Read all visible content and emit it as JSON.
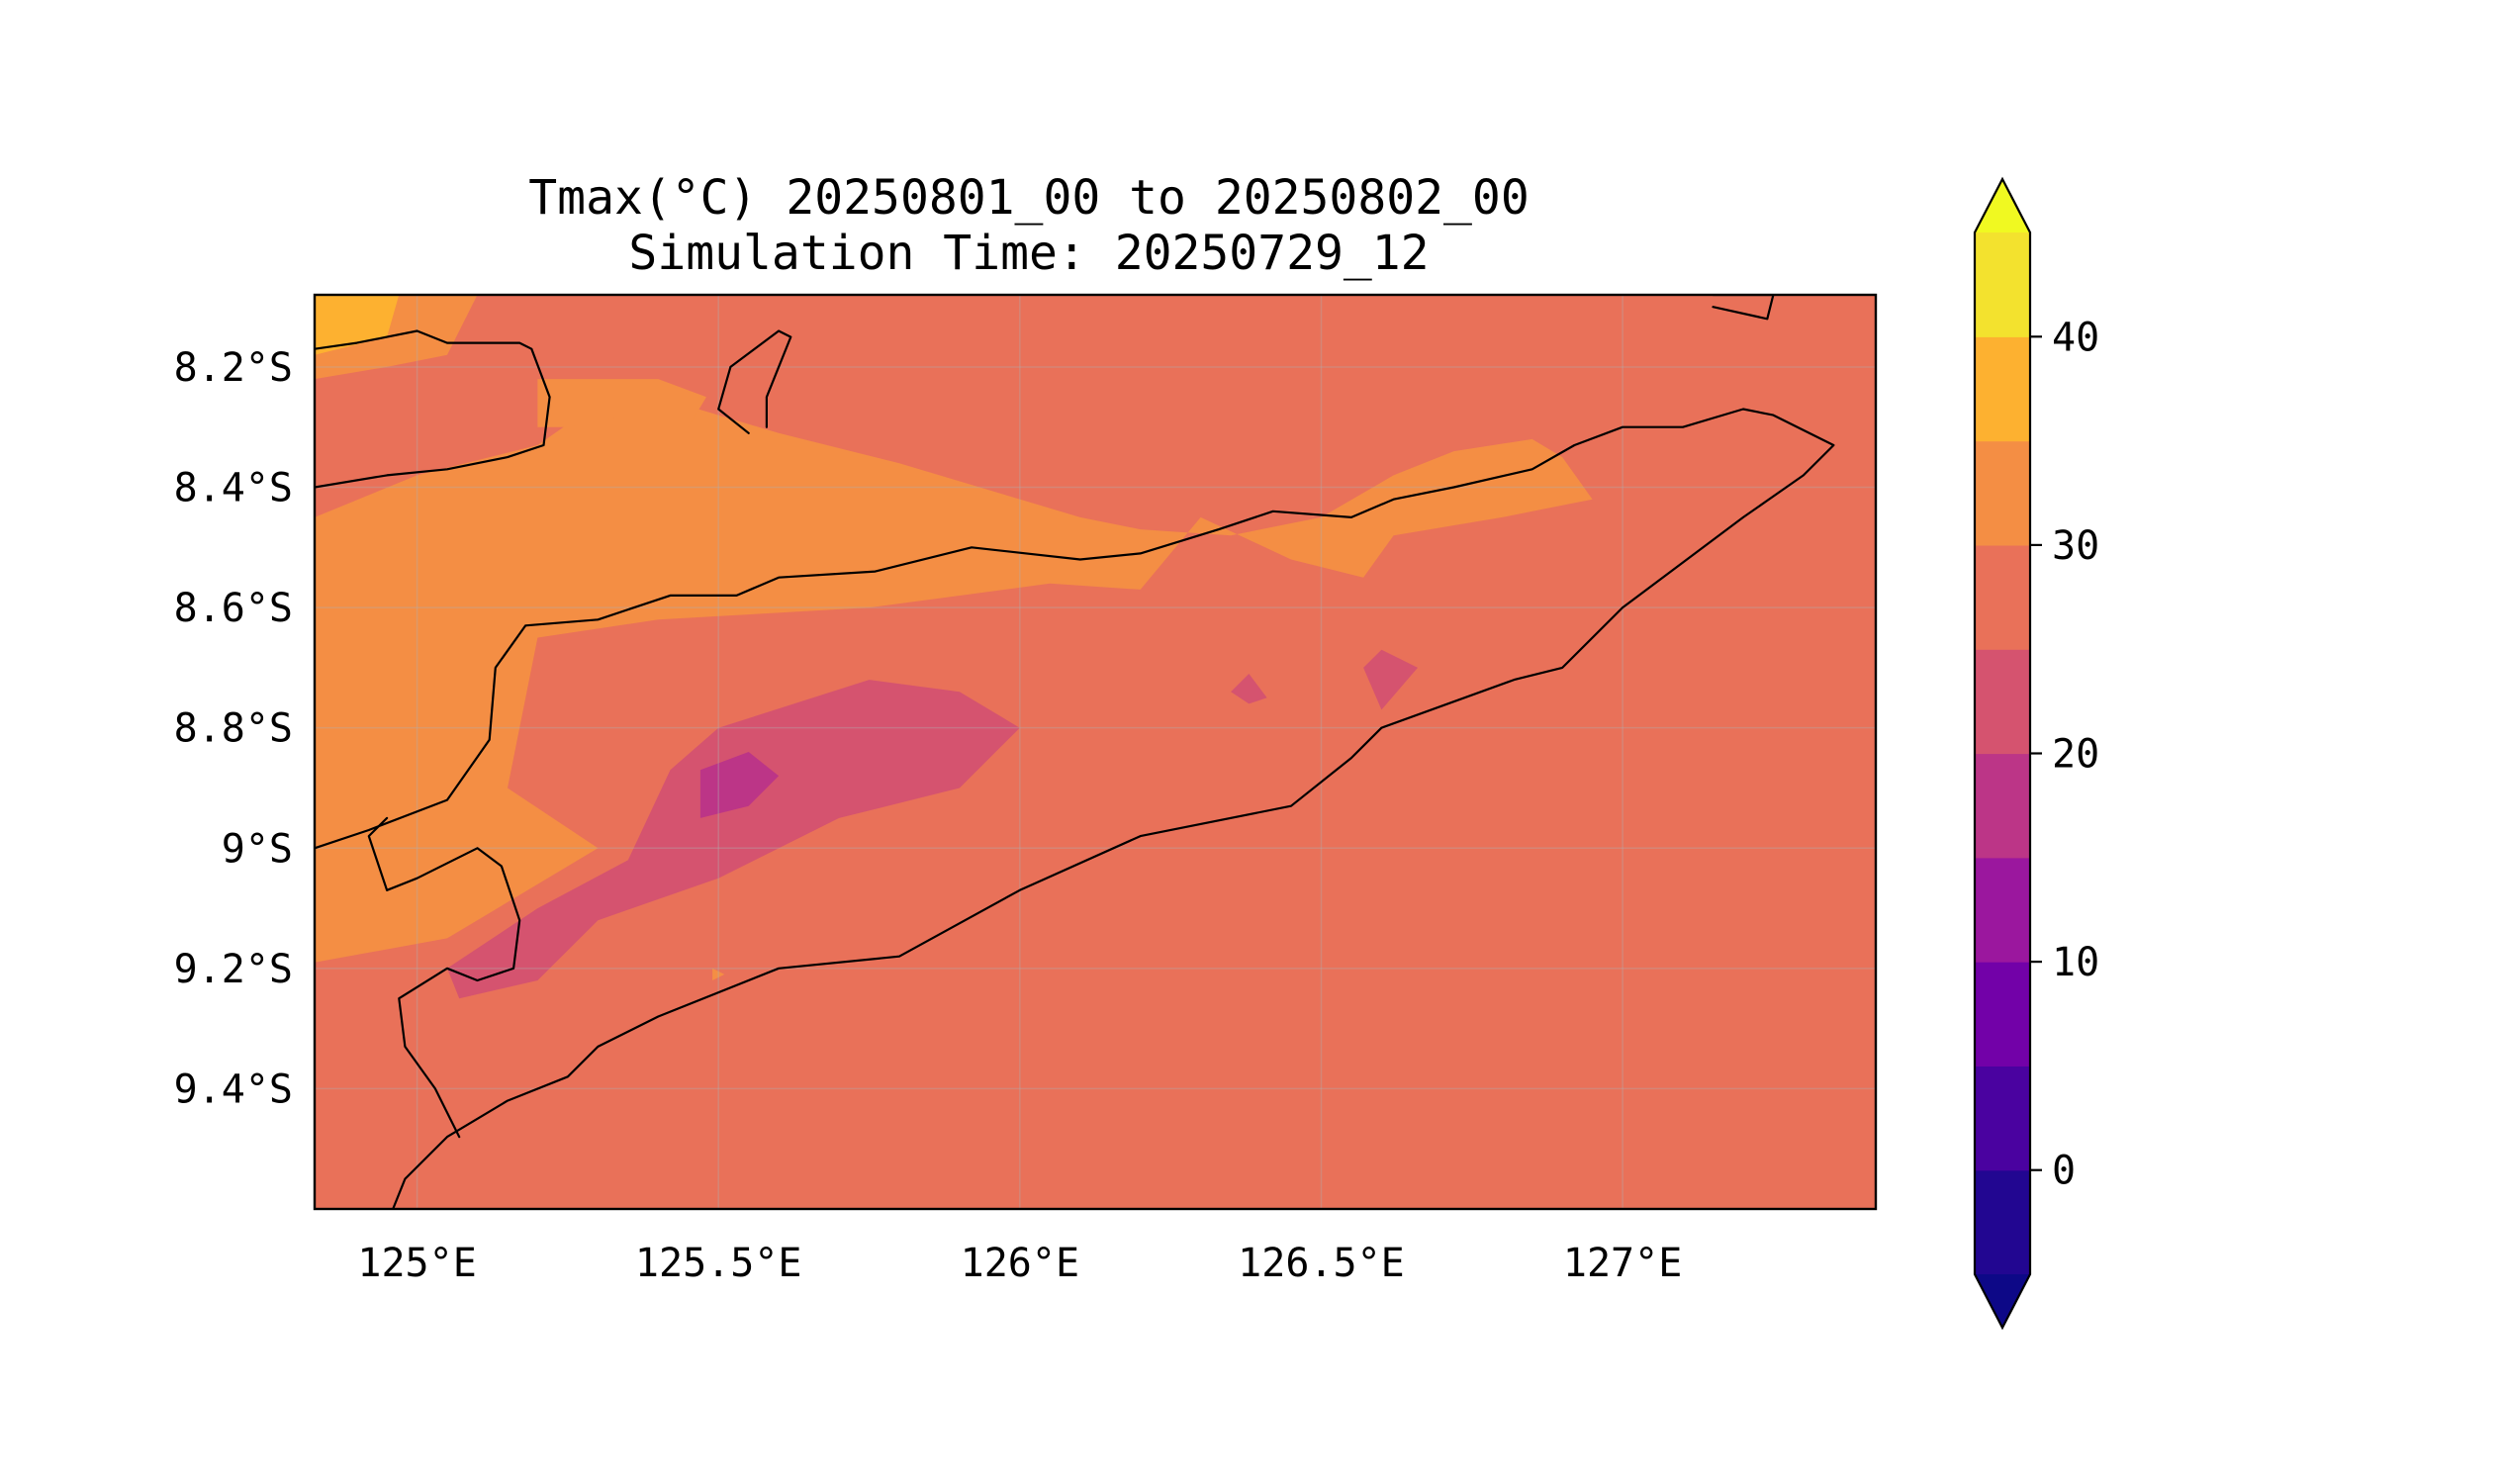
{
  "chart_data": {
    "type": "map-contour",
    "title": "Tmax(°C) 20250801_00 to 20250802_00",
    "subtitle": "Simulation Time: 20250729_12",
    "xlim": [
      124.83,
      127.42
    ],
    "ylim": [
      -9.6,
      -8.08
    ],
    "x_ticks": [
      125.0,
      125.5,
      126.0,
      126.5,
      127.0
    ],
    "y_ticks": [
      -8.2,
      -8.4,
      -8.6,
      -8.8,
      -9.0,
      -9.2,
      -9.4
    ],
    "x_tick_labels": [
      "125°E",
      "125.5°E",
      "126°E",
      "126.5°E",
      "127°E"
    ],
    "y_tick_labels": [
      "8.2°S",
      "8.4°S",
      "8.6°S",
      "8.8°S",
      "9°S",
      "9.2°S",
      "9.4°S"
    ],
    "grid": true,
    "colorbar": {
      "levels": [
        -5,
        0,
        5,
        10,
        15,
        20,
        25,
        30,
        35,
        40,
        45
      ],
      "colors": [
        "#220691",
        "#4a02a0",
        "#7201a8",
        "#9b179e",
        "#bc3587",
        "#d5536f",
        "#e97159",
        "#f48e44",
        "#fdb130",
        "#f3e22e"
      ],
      "under_color": "#0d0887",
      "over_color": "#f0f921",
      "extend": "both",
      "ticks": [
        0,
        10,
        20,
        30,
        40
      ],
      "tick_labels": [
        "0",
        "10",
        "20",
        "30",
        "40"
      ]
    },
    "background_value_band": "25-30",
    "regions": [
      {
        "band": "30-35",
        "color": "#f48e44",
        "lonlat": [
          [
            124.83,
            -8.45
          ],
          [
            125.0,
            -8.38
          ],
          [
            125.2,
            -8.33
          ],
          [
            125.3,
            -8.26
          ],
          [
            125.4,
            -8.25
          ],
          [
            125.5,
            -8.28
          ],
          [
            125.6,
            -8.31
          ],
          [
            125.8,
            -8.36
          ],
          [
            126.1,
            -8.45
          ],
          [
            126.2,
            -8.47
          ],
          [
            126.35,
            -8.48
          ],
          [
            126.5,
            -8.45
          ],
          [
            126.62,
            -8.38
          ],
          [
            126.72,
            -8.34
          ],
          [
            126.85,
            -8.32
          ],
          [
            126.9,
            -8.35
          ],
          [
            126.95,
            -8.42
          ],
          [
            126.8,
            -8.45
          ],
          [
            126.62,
            -8.48
          ],
          [
            126.57,
            -8.55
          ],
          [
            126.45,
            -8.52
          ],
          [
            126.3,
            -8.45
          ],
          [
            126.2,
            -8.57
          ],
          [
            126.05,
            -8.56
          ],
          [
            125.75,
            -8.6
          ],
          [
            125.4,
            -8.62
          ],
          [
            125.2,
            -8.65
          ],
          [
            125.15,
            -8.9
          ],
          [
            125.3,
            -9.0
          ],
          [
            125.05,
            -9.15
          ],
          [
            124.83,
            -9.19
          ]
        ]
      },
      {
        "band": "30-35",
        "color": "#f48e44",
        "lonlat": [
          [
            124.83,
            -8.15
          ],
          [
            124.95,
            -8.08
          ],
          [
            125.1,
            -8.08
          ],
          [
            125.05,
            -8.18
          ],
          [
            124.95,
            -8.2
          ],
          [
            124.83,
            -8.22
          ]
        ]
      },
      {
        "band": "30-35",
        "color": "#f48e44",
        "lonlat": [
          [
            125.2,
            -8.22
          ],
          [
            125.4,
            -8.22
          ],
          [
            125.48,
            -8.25
          ],
          [
            125.45,
            -8.3
          ],
          [
            125.35,
            -8.28
          ],
          [
            125.25,
            -8.3
          ],
          [
            125.2,
            -8.3
          ]
        ]
      },
      {
        "band": "35-40",
        "color": "#fdb130",
        "lonlat": [
          [
            124.83,
            -8.08
          ],
          [
            124.97,
            -8.08
          ],
          [
            124.95,
            -8.15
          ],
          [
            124.83,
            -8.18
          ]
        ]
      },
      {
        "band": "20-25",
        "color": "#d5536f",
        "lonlat": [
          [
            125.5,
            -8.8
          ],
          [
            125.75,
            -8.72
          ],
          [
            125.9,
            -8.74
          ],
          [
            126.0,
            -8.8
          ],
          [
            125.9,
            -8.9
          ],
          [
            125.7,
            -8.95
          ],
          [
            125.5,
            -9.05
          ],
          [
            125.3,
            -9.12
          ],
          [
            125.2,
            -9.22
          ],
          [
            125.07,
            -9.25
          ],
          [
            125.05,
            -9.2
          ],
          [
            125.2,
            -9.1
          ],
          [
            125.35,
            -9.02
          ],
          [
            125.42,
            -8.87
          ]
        ]
      },
      {
        "band": "20-25",
        "color": "#d5536f",
        "lonlat": [
          [
            126.6,
            -8.67
          ],
          [
            126.66,
            -8.7
          ],
          [
            126.6,
            -8.77
          ],
          [
            126.57,
            -8.7
          ]
        ]
      },
      {
        "band": "20-25",
        "color": "#d5536f",
        "lonlat": [
          [
            126.35,
            -8.74
          ],
          [
            126.38,
            -8.71
          ],
          [
            126.41,
            -8.75
          ],
          [
            126.38,
            -8.76
          ]
        ]
      },
      {
        "band": "15-20",
        "color": "#bc3587",
        "lonlat": [
          [
            125.47,
            -8.87
          ],
          [
            125.55,
            -8.84
          ],
          [
            125.6,
            -8.88
          ],
          [
            125.55,
            -8.93
          ],
          [
            125.47,
            -8.95
          ]
        ]
      },
      {
        "band": "30-35",
        "color": "#f48e44",
        "lonlat": [
          [
            125.49,
            -9.2
          ],
          [
            125.51,
            -9.21
          ],
          [
            125.49,
            -9.22
          ]
        ]
      }
    ],
    "coastlines": [
      {
        "name": "alor-coast",
        "lonlat": [
          [
            124.83,
            -8.4
          ],
          [
            124.95,
            -8.38
          ],
          [
            125.05,
            -8.37
          ],
          [
            125.15,
            -8.35
          ],
          [
            125.21,
            -8.33
          ],
          [
            125.22,
            -8.25
          ],
          [
            125.19,
            -8.17
          ],
          [
            125.17,
            -8.16
          ],
          [
            125.05,
            -8.16
          ],
          [
            125.0,
            -8.14
          ],
          [
            124.95,
            -8.15
          ],
          [
            124.9,
            -8.16
          ],
          [
            124.83,
            -8.17
          ]
        ]
      },
      {
        "name": "atauro-coast",
        "lonlat": [
          [
            125.55,
            -8.31
          ],
          [
            125.5,
            -8.27
          ],
          [
            125.52,
            -8.2
          ],
          [
            125.6,
            -8.14
          ],
          [
            125.62,
            -8.15
          ],
          [
            125.58,
            -8.25
          ],
          [
            125.58,
            -8.3
          ]
        ]
      },
      {
        "name": "wetar-coast",
        "lonlat": [
          [
            127.15,
            -8.08
          ],
          [
            127.25,
            -8.08
          ],
          [
            127.24,
            -8.12
          ],
          [
            127.15,
            -8.1
          ]
        ]
      },
      {
        "name": "timor-coast",
        "lonlat": [
          [
            124.83,
            -9.0
          ],
          [
            124.92,
            -8.97
          ],
          [
            125.05,
            -8.92
          ],
          [
            125.12,
            -8.82
          ],
          [
            125.13,
            -8.7
          ],
          [
            125.18,
            -8.63
          ],
          [
            125.3,
            -8.62
          ],
          [
            125.42,
            -8.58
          ],
          [
            125.53,
            -8.58
          ],
          [
            125.6,
            -8.55
          ],
          [
            125.76,
            -8.54
          ],
          [
            125.92,
            -8.5
          ],
          [
            126.1,
            -8.52
          ],
          [
            126.2,
            -8.51
          ],
          [
            126.33,
            -8.47
          ],
          [
            126.42,
            -8.44
          ],
          [
            126.55,
            -8.45
          ],
          [
            126.62,
            -8.42
          ],
          [
            126.72,
            -8.4
          ],
          [
            126.85,
            -8.37
          ],
          [
            126.92,
            -8.33
          ],
          [
            127.0,
            -8.3
          ],
          [
            127.1,
            -8.3
          ],
          [
            127.2,
            -8.27
          ],
          [
            127.25,
            -8.28
          ],
          [
            127.35,
            -8.33
          ],
          [
            127.3,
            -8.38
          ],
          [
            127.2,
            -8.45
          ],
          [
            127.0,
            -8.6
          ],
          [
            126.9,
            -8.7
          ],
          [
            126.82,
            -8.72
          ],
          [
            126.6,
            -8.8
          ],
          [
            126.55,
            -8.85
          ],
          [
            126.45,
            -8.93
          ],
          [
            126.2,
            -8.98
          ],
          [
            126.0,
            -9.07
          ],
          [
            125.8,
            -9.18
          ],
          [
            125.6,
            -9.2
          ],
          [
            125.4,
            -9.28
          ],
          [
            125.3,
            -9.33
          ],
          [
            125.25,
            -9.38
          ],
          [
            125.15,
            -9.42
          ],
          [
            125.05,
            -9.48
          ],
          [
            124.98,
            -9.55
          ],
          [
            124.96,
            -9.6
          ]
        ]
      },
      {
        "name": "oecusse-coast",
        "lonlat": [
          [
            125.07,
            -9.48
          ],
          [
            125.03,
            -9.4
          ],
          [
            124.98,
            -9.33
          ],
          [
            124.97,
            -9.25
          ],
          [
            125.05,
            -9.2
          ],
          [
            125.1,
            -9.22
          ],
          [
            125.16,
            -9.2
          ],
          [
            125.17,
            -9.12
          ],
          [
            125.14,
            -9.03
          ],
          [
            125.1,
            -9.0
          ],
          [
            125.0,
            -9.05
          ],
          [
            124.95,
            -9.07
          ],
          [
            124.92,
            -8.98
          ],
          [
            124.95,
            -8.95
          ]
        ]
      }
    ]
  }
}
